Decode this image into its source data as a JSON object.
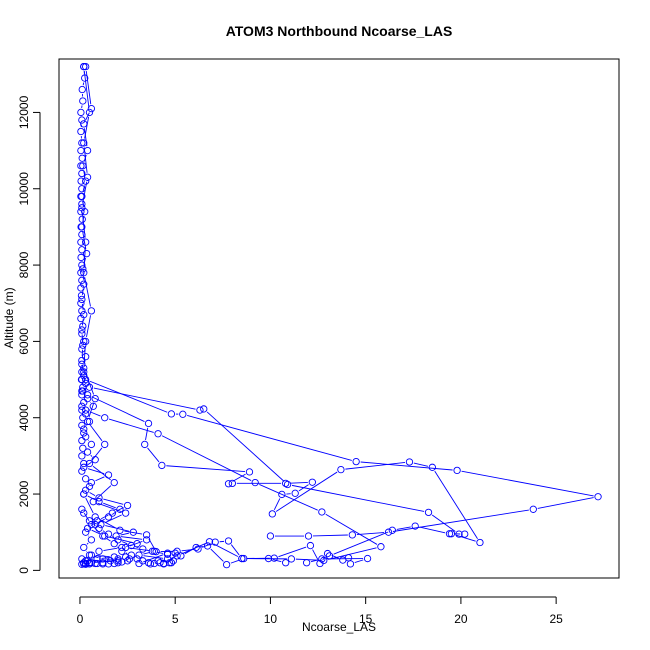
{
  "chart_data": {
    "type": "line",
    "title": "ATOM3 Northbound Ncoarse_LAS",
    "xlabel": "Ncoarse_LAS",
    "ylabel": "Altitude (m)",
    "xlim": [
      -1.1,
      28.3
    ],
    "ylim": [
      -200,
      13400
    ],
    "x_ticks": [
      0,
      5,
      10,
      15,
      20,
      25
    ],
    "x_tick_labels": [
      "0",
      "5",
      "10",
      "15",
      "20",
      "25"
    ],
    "y_ticks": [
      0,
      2000,
      4000,
      6000,
      8000,
      10000,
      12000
    ],
    "y_tick_labels": [
      "0",
      "2000",
      "4000",
      "6000",
      "8000",
      "10000",
      "12000"
    ],
    "grid": false,
    "marker": "open-circle",
    "color": "#0000ff",
    "series": [
      {
        "name": "",
        "x": [
          0.2,
          0.25,
          0.12,
          0.15,
          0.05,
          0.1,
          0.05,
          0.1,
          0.05,
          0.12,
          0.05,
          0.1,
          0.06,
          0.1,
          0.05,
          0.1,
          0.05,
          0.12,
          0.06,
          0.1,
          0.05,
          0.1,
          0.06,
          0.1,
          0.05,
          0.1,
          0.05,
          0.08,
          0.05,
          0.1,
          0.05,
          0.15,
          0.1,
          0.2,
          0.1,
          0.3,
          0.1,
          0.2,
          0.08,
          0.15,
          0.1,
          0.2,
          0.1,
          0.15,
          0.1,
          0.2,
          0.1,
          0.15,
          0.1,
          0.2,
          0.1,
          0.3,
          0.5,
          0.2,
          1.0,
          2.1,
          1.5,
          0.8,
          0.3,
          0.6,
          0.2,
          0.5,
          1.2,
          2.0,
          0.5,
          0.3,
          0.2,
          0.1
        ],
        "y": [
          13200,
          12900,
          12600,
          12300,
          12000,
          11800,
          11500,
          11200,
          11000,
          10800,
          10600,
          10400,
          10200,
          10000,
          9800,
          9600,
          9400,
          9200,
          9000,
          8800,
          8600,
          8400,
          8200,
          8000,
          7800,
          7600,
          7400,
          7200,
          7000,
          6800,
          6600,
          6400,
          6200,
          6000,
          5800,
          5600,
          5400,
          5200,
          5000,
          4800,
          4600,
          4400,
          4200,
          4000,
          3800,
          3600,
          3400,
          3200,
          3000,
          2800,
          2600,
          2400,
          2200,
          2000,
          1800,
          1600,
          1400,
          1200,
          1000,
          800,
          600,
          400,
          300,
          250,
          200,
          180,
          170,
          160
        ]
      },
      {
        "name": "",
        "x": [
          0.3,
          0.6,
          0.2,
          0.4,
          0.15,
          0.3,
          0.1,
          0.25,
          0.1,
          0.35,
          0.15,
          0.2,
          0.1,
          0.2,
          0.1,
          0.15,
          0.1,
          0.2,
          0.3,
          0.15,
          0.4,
          0.7,
          0.3,
          0.5,
          0.2,
          0.3,
          0.6,
          0.4,
          0.8,
          0.2,
          1.5,
          0.6,
          0.3,
          1.0,
          2.5,
          1.7,
          0.9,
          0.4,
          1.3,
          3.0,
          2.2,
          1.0,
          0.6,
          1.8,
          0.9,
          0.4,
          0.2
        ],
        "y": [
          13200,
          12100,
          11700,
          11000,
          10600,
          10200,
          9800,
          9400,
          9000,
          8300,
          7900,
          7500,
          7100,
          6700,
          6300,
          5900,
          5500,
          5100,
          4900,
          4700,
          4500,
          4300,
          4100,
          3900,
          3700,
          3500,
          3300,
          3100,
          2900,
          2700,
          2500,
          2300,
          2100,
          1900,
          1700,
          1500,
          1300,
          1100,
          900,
          700,
          600,
          500,
          400,
          350,
          300,
          250,
          200
        ]
      },
      {
        "name": "",
        "x": [
          0.2,
          0.5,
          0.2,
          0.4,
          0.1,
          0.3,
          0.2,
          0.6,
          0.3,
          0.2,
          0.8,
          0.4,
          1.3,
          0.5,
          1.8,
          0.7,
          2.4,
          1.1,
          2.8,
          1.9,
          3.5,
          2.4,
          3.9,
          3.1,
          4.6,
          4.1,
          4.8,
          4.4
        ],
        "y": [
          13200,
          12000,
          11200,
          10300,
          9500,
          8600,
          7800,
          6800,
          6000,
          5300,
          4500,
          3900,
          3300,
          2800,
          2300,
          1800,
          1500,
          1200,
          1000,
          900,
          800,
          600,
          500,
          400,
          300,
          250,
          200,
          180
        ]
      },
      {
        "name": "",
        "x": [
          0.1,
          0.5,
          6.3,
          6.5,
          10.9,
          18.3,
          19.9,
          20.2,
          19.4,
          17.6,
          16.4,
          13.1
        ],
        "y": [
          5000,
          4800,
          4200,
          4230,
          2250,
          1520,
          950,
          950,
          960,
          1160,
          1050,
          380
        ]
      },
      {
        "name": "",
        "x": [
          0.1,
          0.3,
          4.8,
          5.4,
          14.5,
          19.8,
          27.2,
          23.8,
          16.2,
          14.3,
          12.0,
          10.0
        ],
        "y": [
          5200,
          5000,
          4100,
          4090,
          2850,
          2620,
          1930,
          1600,
          1000,
          930,
          900,
          900
        ]
      },
      {
        "name": "",
        "x": [
          0.1,
          0.4,
          3.6,
          3.4,
          4.3,
          8.9,
          7.8,
          8.0,
          10.8,
          12.2,
          11.3,
          10.6,
          10.1,
          13.7,
          17.3,
          18.5,
          21.0,
          19.5
        ],
        "y": [
          4700,
          4600,
          3850,
          3300,
          2750,
          2580,
          2270,
          2280,
          2280,
          2310,
          2020,
          1990,
          1480,
          2640,
          2840,
          2700,
          730,
          960
        ]
      },
      {
        "name": "",
        "x": [
          0.1,
          0.3,
          1.3,
          4.1,
          9.2,
          12.7,
          15.8,
          12.8,
          11.1,
          8.5,
          6.8,
          5.1,
          4.4,
          4.2,
          3.7
        ],
        "y": [
          4300,
          4200,
          4000,
          3580,
          2300,
          1530,
          620,
          260,
          300,
          310,
          750,
          380,
          170,
          200,
          170
        ]
      },
      {
        "name": "",
        "x": [
          0.2,
          0.8,
          2.1,
          3.5,
          4.0,
          5.1,
          6.2,
          7.1,
          7.8,
          8.5,
          10.2,
          12.1,
          12.6,
          13.0,
          13.8,
          14.1,
          14.2,
          15.1,
          12.7,
          11.9
        ],
        "y": [
          2000,
          1400,
          1050,
          930,
          490,
          500,
          560,
          740,
          770,
          310,
          320,
          650,
          180,
          440,
          270,
          330,
          170,
          310,
          300,
          200
        ]
      },
      {
        "name": "",
        "x": [
          0.1,
          0.6,
          1.2,
          1.8,
          2.2,
          2.7,
          3.0,
          3.3,
          3.6,
          3.9,
          4.4,
          4.7,
          4.9,
          5.0,
          4.6,
          3.1
        ],
        "y": [
          1600,
          1200,
          900,
          700,
          500,
          400,
          300,
          250,
          200,
          180,
          180,
          200,
          250,
          450,
          450,
          180
        ]
      },
      {
        "name": "",
        "x": [
          0.1,
          0.3,
          0.6,
          0.9,
          1.2,
          1.5,
          1.8,
          2.0,
          2.2,
          2.5,
          2.6,
          2.4,
          2.0,
          1.6,
          1.2,
          0.8,
          0.5,
          0.3
        ],
        "y": [
          300,
          250,
          200,
          180,
          170,
          170,
          180,
          200,
          220,
          250,
          300,
          350,
          300,
          250,
          200,
          180,
          170,
          160
        ]
      },
      {
        "name": "",
        "x": [
          0.2,
          0.5,
          1.0,
          1.5,
          2.0,
          2.7,
          3.3,
          3.8,
          4.6,
          5.3,
          6.1,
          6.7,
          7.7,
          8.6,
          9.9,
          10.8
        ],
        "y": [
          1500,
          1300,
          1100,
          950,
          800,
          650,
          560,
          500,
          420,
          380,
          600,
          640,
          150,
          310,
          310,
          200
        ]
      }
    ]
  }
}
